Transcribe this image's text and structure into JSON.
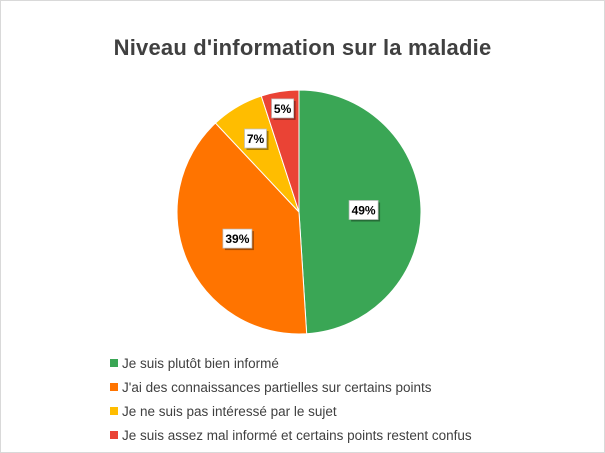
{
  "chart_data": {
    "type": "pie",
    "title": "Niveau d'information sur la maladie",
    "labels": [
      "Je suis plutôt bien informé",
      "J'ai des connaissances partielles sur certains points",
      "Je ne suis pas intéressé par le sujet",
      "Je suis assez mal informé et certains points restent confus"
    ],
    "values": [
      49,
      39,
      7,
      5
    ],
    "display_labels": [
      "49%",
      "39%",
      "7%",
      "5%"
    ],
    "colors": [
      "#3aa655",
      "#ff7400",
      "#ffbd00",
      "#ea4335"
    ],
    "legend_position": "bottom-left"
  }
}
